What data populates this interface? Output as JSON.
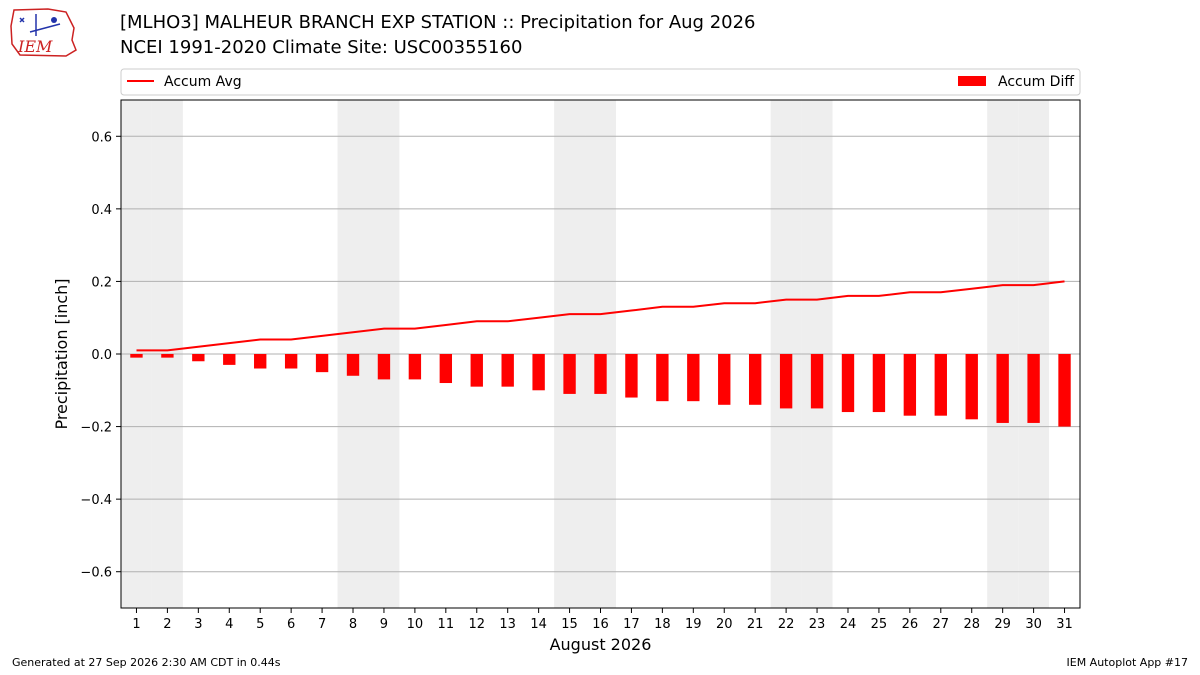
{
  "header": {
    "title_line1": "[MLHO3] MALHEUR BRANCH EXP STATION :: Precipitation for Aug 2026",
    "title_line2": "NCEI 1991-2020 Climate Site: USC00355160",
    "logo_text": "IEM"
  },
  "footer": {
    "generated": "Generated at 27 Sep 2026 2:30 AM CDT in 0.44s",
    "app": "IEM Autoplot App #17"
  },
  "colors": {
    "bar": "#ff0000",
    "line": "#ff0000",
    "weekend_shade": "#eeeeee",
    "grid": "#b0b0b0"
  },
  "chart_data": {
    "type": "bar",
    "xlabel": "August 2026",
    "ylabel": "Precipitation [inch]",
    "ylim": [
      -0.7,
      0.7
    ],
    "yticks": [
      -0.6,
      -0.4,
      -0.2,
      0.0,
      0.2,
      0.4,
      0.6
    ],
    "ytick_labels": [
      "−0.6",
      "−0.4",
      "−0.2",
      "0.0",
      "0.2",
      "0.4",
      "0.6"
    ],
    "grid": "horizontal",
    "legend_placement": "top (above plot)",
    "x": [
      1,
      2,
      3,
      4,
      5,
      6,
      7,
      8,
      9,
      10,
      11,
      12,
      13,
      14,
      15,
      16,
      17,
      18,
      19,
      20,
      21,
      22,
      23,
      24,
      25,
      26,
      27,
      28,
      29,
      30,
      31
    ],
    "shaded_days": [
      1,
      2,
      8,
      9,
      15,
      16,
      22,
      23,
      29,
      30
    ],
    "series": [
      {
        "name": "Accum Diff",
        "type": "bar",
        "values": [
          -0.01,
          -0.01,
          -0.02,
          -0.03,
          -0.04,
          -0.04,
          -0.05,
          -0.06,
          -0.07,
          -0.07,
          -0.08,
          -0.09,
          -0.09,
          -0.1,
          -0.11,
          -0.11,
          -0.12,
          -0.13,
          -0.13,
          -0.14,
          -0.14,
          -0.15,
          -0.15,
          -0.16,
          -0.16,
          -0.17,
          -0.17,
          -0.18,
          -0.19,
          -0.19,
          -0.2
        ]
      },
      {
        "name": "Accum Avg",
        "type": "line",
        "values": [
          0.01,
          0.01,
          0.02,
          0.03,
          0.04,
          0.04,
          0.05,
          0.06,
          0.07,
          0.07,
          0.08,
          0.09,
          0.09,
          0.1,
          0.11,
          0.11,
          0.12,
          0.13,
          0.13,
          0.14,
          0.14,
          0.15,
          0.15,
          0.16,
          0.16,
          0.17,
          0.17,
          0.18,
          0.19,
          0.19,
          0.2
        ]
      }
    ]
  }
}
